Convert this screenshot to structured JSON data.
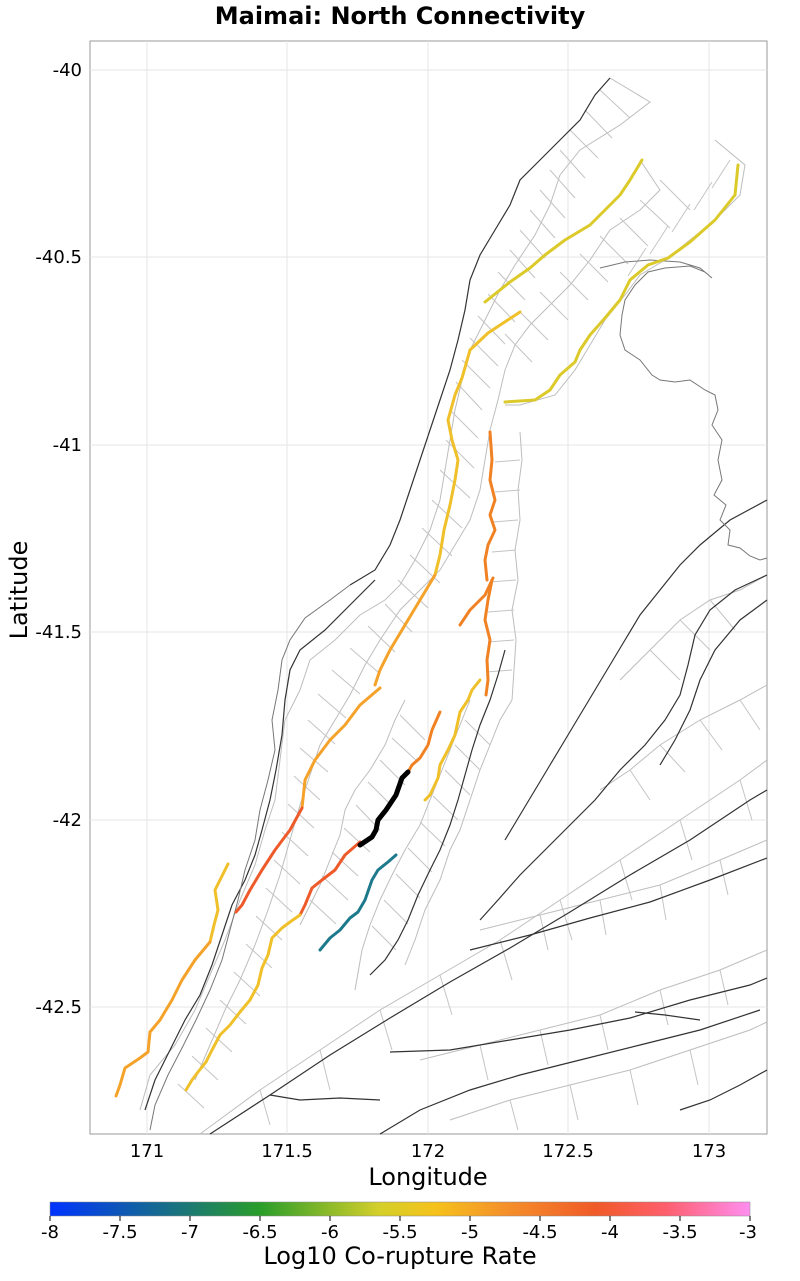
{
  "title": "Maimai: North Connectivity",
  "xlabel": "Longitude",
  "ylabel": "Latitude",
  "x_ticks": [
    "171",
    "171.5",
    "172",
    "172.5",
    "173"
  ],
  "y_ticks": [
    "-40",
    "-40.5",
    "-41",
    "-41.5",
    "-42",
    "-42.5"
  ],
  "colorbar": {
    "label": "Log10 Co-rupture Rate",
    "ticks": [
      "-8",
      "-7.5",
      "-7",
      "-6.5",
      "-6",
      "-5.5",
      "-5",
      "-4.5",
      "-4",
      "-3.5",
      "-3"
    ],
    "gradient_colors": [
      "#0033ff",
      "#2a9d2a",
      "#d4cf2a",
      "#f5c21b",
      "#f5902a",
      "#f05a28",
      "#ff5f6d",
      "#ff8ef0"
    ]
  },
  "colors": {
    "source_rupture": "#000000",
    "yellow": "#e0cf2a",
    "gold": "#f0c02a",
    "light_orange": "#f5a22a",
    "orange": "#f08224",
    "red_orange": "#ee5a2a",
    "teal": "#1d7a8c",
    "fault_trace": "#333333",
    "section_outline": "#bdbdbd",
    "coastline": "#777777"
  }
}
